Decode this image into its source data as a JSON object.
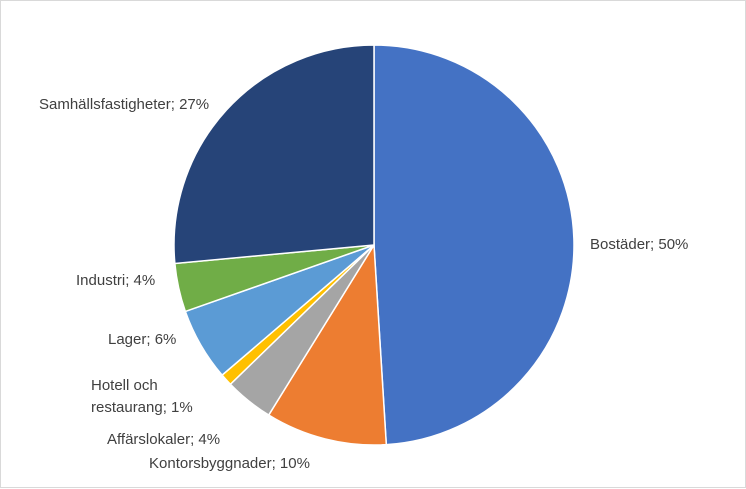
{
  "chart_data": {
    "type": "pie",
    "start_angle_deg": 0,
    "direction": "clockwise",
    "slices": [
      {
        "label": "Bostäder; 50%",
        "value": 50,
        "color": "#4472c4"
      },
      {
        "label": "Kontorsbyggnader; 10%",
        "value": 10,
        "color": "#ed7d31"
      },
      {
        "label": "Affärslokaler; 4%",
        "value": 4,
        "color": "#a5a5a5"
      },
      {
        "label_lines": [
          "Hotell och",
          "restaurang; 1%"
        ],
        "value": 1,
        "color": "#ffc000"
      },
      {
        "label": "Lager; 6%",
        "value": 6,
        "color": "#5b9bd5"
      },
      {
        "label": "Industri; 4%",
        "value": 4,
        "color": "#70ad47"
      },
      {
        "label": "Samhällsfastigheter; 27%",
        "value": 27,
        "color": "#264478"
      }
    ]
  }
}
